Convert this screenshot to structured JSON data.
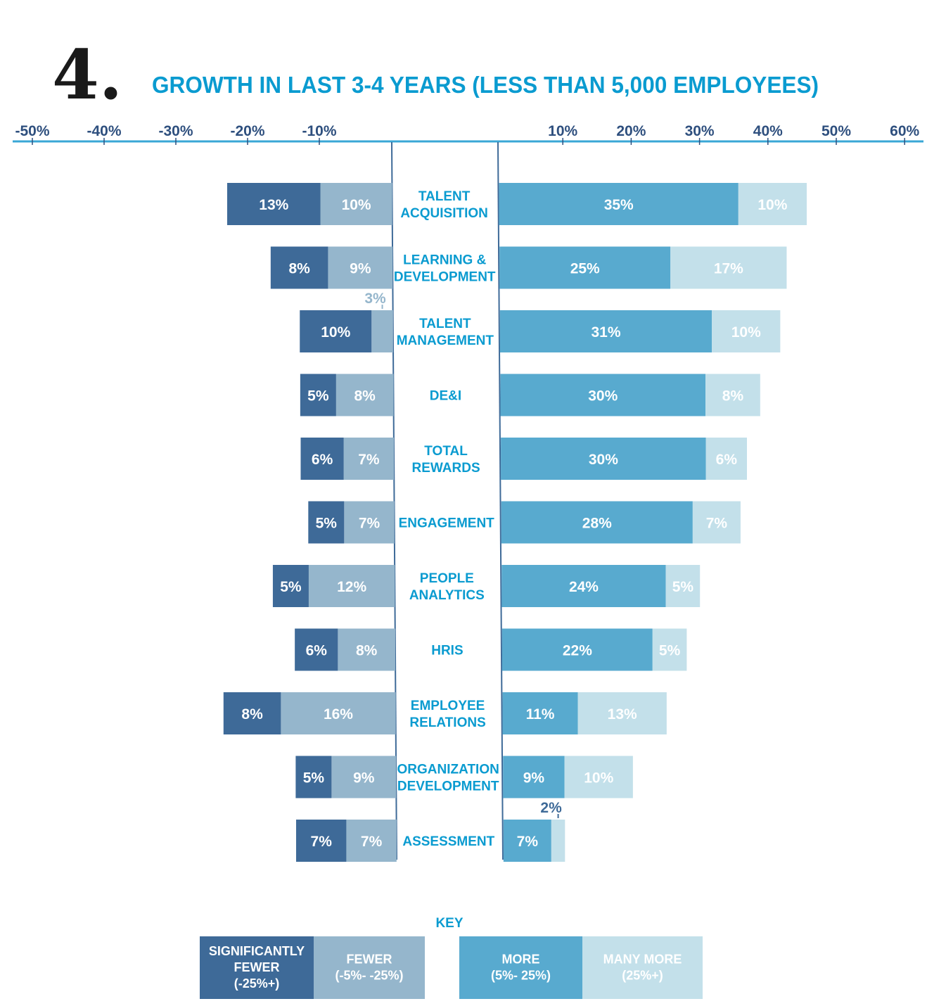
{
  "chart_data": {
    "type": "bar",
    "subtype": "diverging-stacked-horizontal",
    "number": "4.",
    "title": "GROWTH IN LAST 3-4 YEARS (LESS THAN 5,000 EMPLOYEES)",
    "x_ticks_negative": [
      "-50%",
      "-40%",
      "-30%",
      "-20%",
      "-10%"
    ],
    "x_ticks_positive": [
      "10%",
      "20%",
      "30%",
      "40%",
      "50%",
      "60%"
    ],
    "xlim": [
      -50,
      60
    ],
    "grid": false,
    "colors": {
      "significantly_fewer": "#3e6a98",
      "fewer": "#95b6cc",
      "more": "#58aacf",
      "many_more": "#c3e0ea",
      "title": "#0a9bd0",
      "ticks": "#2e4f7e"
    },
    "categories": [
      [
        "TALENT",
        "ACQUISITION"
      ],
      [
        "LEARNING &",
        "DEVELOPMENT"
      ],
      [
        "TALENT",
        "MANAGEMENT"
      ],
      [
        "DE&I"
      ],
      [
        "TOTAL",
        "REWARDS"
      ],
      [
        "ENGAGEMENT"
      ],
      [
        "PEOPLE",
        "ANALYTICS"
      ],
      [
        "HRIS"
      ],
      [
        "EMPLOYEE",
        "RELATIONS"
      ],
      [
        "ORGANIZATION",
        "DEVELOPMENT"
      ],
      [
        "ASSESSMENT"
      ]
    ],
    "series": [
      {
        "name": "SIGNIFICANTLY FEWER (-25%+)",
        "values": [
          13,
          8,
          10,
          5,
          6,
          5,
          5,
          6,
          8,
          5,
          7
        ]
      },
      {
        "name": "FEWER (-5%- -25%)",
        "values": [
          10,
          9,
          3,
          8,
          7,
          7,
          12,
          8,
          16,
          9,
          7
        ]
      },
      {
        "name": "MORE (5%- 25%)",
        "values": [
          35,
          25,
          31,
          30,
          30,
          28,
          24,
          22,
          11,
          9,
          7
        ]
      },
      {
        "name": "MANY MORE (25%+)",
        "values": [
          10,
          17,
          10,
          8,
          6,
          7,
          5,
          5,
          13,
          10,
          2
        ]
      }
    ],
    "legend": {
      "title": "KEY",
      "placement": "bottom",
      "items": [
        [
          "SIGNIFICANTLY",
          "FEWER",
          "(-25%+)"
        ],
        [
          "FEWER",
          "(-5%- -25%)"
        ],
        [
          "MORE",
          "(5%- 25%)"
        ],
        [
          "MANY MORE",
          "(25%+)"
        ]
      ]
    }
  }
}
